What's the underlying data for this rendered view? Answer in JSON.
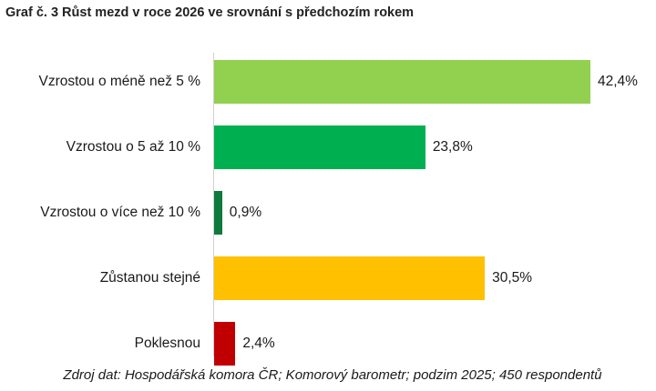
{
  "title": "Graf č. 3 Růst mezd v roce 2026 ve srovnání s předchozím rokem",
  "source": "Zdroj dat: Hospodářská komora ČR; Komorový barometr; podzim 2025; 450 respondentů",
  "bars": [
    {
      "label": "Vzrostou o méně než 5 %",
      "value": 42.4,
      "value_label": "42,4%",
      "color": "#92d050"
    },
    {
      "label": "Vzrostou o 5 až 10 %",
      "value": 23.8,
      "value_label": "23,8%",
      "color": "#00b050"
    },
    {
      "label": "Vzrostou o více než 10 %",
      "value": 0.9,
      "value_label": "0,9%",
      "color": "#0e7a3c"
    },
    {
      "label": "Zůstanou stejné",
      "value": 30.5,
      "value_label": "30,5%",
      "color": "#ffc000"
    },
    {
      "label": "Poklesnou",
      "value": 2.4,
      "value_label": "2,4%",
      "color": "#c00000"
    }
  ],
  "chart_data": {
    "type": "bar",
    "orientation": "horizontal",
    "title": "Graf č. 3 Růst mezd v roce 2026 ve srovnání s předchozím rokem",
    "categories": [
      "Vzrostou o méně než 5 %",
      "Vzrostou o 5 až 10 %",
      "Vzrostou o více než 10 %",
      "Zůstanou stejné",
      "Poklesnou"
    ],
    "values": [
      42.4,
      23.8,
      0.9,
      30.5,
      2.4
    ],
    "data_labels": [
      "42,4%",
      "23,8%",
      "0,9%",
      "30,5%",
      "2,4%"
    ],
    "colors": [
      "#92d050",
      "#00b050",
      "#0e7a3c",
      "#ffc000",
      "#c00000"
    ],
    "xlabel": "",
    "ylabel": "",
    "unit": "%",
    "grid": false,
    "legend": "none",
    "annotation": "Zdroj dat: Hospodářská komora ČR; Komorový barometr; podzim 2025; 450 respondentů"
  }
}
